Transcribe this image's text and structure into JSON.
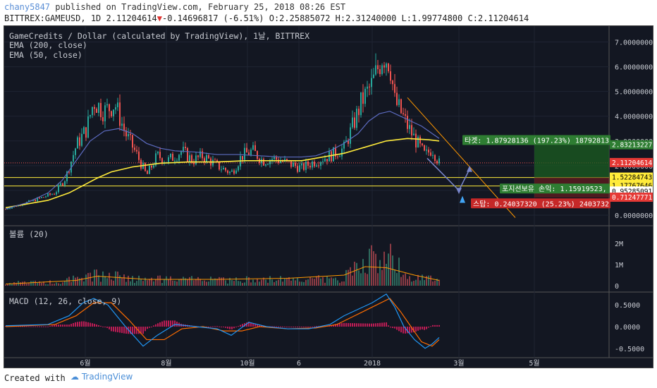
{
  "header": {
    "user": "chany5847",
    "published": " published on TradingView.com, February 25, 2018 08:26 EST",
    "symbol_line": "BITTREX:GAMEUSD, 1D 2.11204614",
    "change": "-0.14696817 (-6.51%)",
    "ohlc": "O:2.25885072 H:2.31240000 L:1.99774800 C:2.11204614",
    "down_arrow": "▼"
  },
  "legend": {
    "title": "GameCredits / Dollar (calculated by TradingView), 1날, BITTREX",
    "ema200": "EMA (200, close)",
    "ema50": "EMA (50, close)",
    "volume": "볼륨 (20)",
    "macd": "MACD (12, 26, close, 9)"
  },
  "footer": {
    "created": "Created with",
    "brand": "TradingView"
  },
  "trade": {
    "target_label": "타겟: 1.87928136 (197.23%) 18792813",
    "position_label": "포지션보유 손익: 1.15919523, 수",
    "stop_label": "스탑: 0.24037320 (25.23%) 2403732"
  },
  "price_labels": {
    "target": "2.83213227",
    "last": "2.11204614",
    "entry": "1.52284743",
    "l2": "1.17767646",
    "stop": "0.71247771",
    "l3": "0.95285091"
  },
  "colors": {
    "up": "#26a69a",
    "down": "#ef5350",
    "ema200": "#ffeb3b",
    "ema50": "#5c6bc0",
    "trend": "#ff9800",
    "macd": "#2196f3",
    "signal": "#ff6d00",
    "hist": "#e91e63"
  },
  "chart_data": [
    {
      "type": "candlestick",
      "title": "GameCredits / Dollar (calculated by TradingView), 1날, BITTREX",
      "ylim": [
        -0.2,
        7.3
      ],
      "yticks": [
        "7.00000000",
        "6.00000000",
        "5.00000000",
        "4.00000000",
        "3.00000000",
        "2.00000000",
        "1.00000000",
        "0.00000000"
      ],
      "xticks": [
        "6월",
        "8월",
        "10월",
        "6",
        "2018",
        "3월",
        "5월"
      ],
      "series": [
        {
          "name": "EMA (200, close)",
          "points": [
            [
              0,
              0.3
            ],
            [
              30,
              0.45
            ],
            [
              60,
              0.6
            ],
            [
              90,
              0.9
            ],
            [
              110,
              1.2
            ],
            [
              130,
              1.5
            ],
            [
              150,
              1.75
            ],
            [
              180,
              1.95
            ],
            [
              220,
              2.1
            ],
            [
              260,
              2.15
            ],
            [
              300,
              2.15
            ],
            [
              340,
              2.2
            ],
            [
              380,
              2.2
            ],
            [
              420,
              2.2
            ],
            [
              450,
              2.35
            ],
            [
              480,
              2.5
            ],
            [
              510,
              2.75
            ],
            [
              540,
              3.0
            ],
            [
              570,
              3.1
            ],
            [
              600,
              3.05
            ],
            [
              615,
              3.0
            ]
          ]
        },
        {
          "name": "EMA (50, close)",
          "points": [
            [
              0,
              0.25
            ],
            [
              30,
              0.5
            ],
            [
              60,
              0.9
            ],
            [
              80,
              1.4
            ],
            [
              100,
              2.2
            ],
            [
              120,
              3.0
            ],
            [
              140,
              3.4
            ],
            [
              160,
              3.5
            ],
            [
              180,
              3.3
            ],
            [
              200,
              2.9
            ],
            [
              220,
              2.7
            ],
            [
              240,
              2.6
            ],
            [
              270,
              2.55
            ],
            [
              300,
              2.45
            ],
            [
              330,
              2.45
            ],
            [
              360,
              2.4
            ],
            [
              390,
              2.35
            ],
            [
              420,
              2.35
            ],
            [
              440,
              2.4
            ],
            [
              460,
              2.6
            ],
            [
              480,
              2.9
            ],
            [
              500,
              3.3
            ],
            [
              515,
              3.8
            ],
            [
              530,
              4.1
            ],
            [
              545,
              4.2
            ],
            [
              560,
              4.0
            ],
            [
              575,
              3.8
            ],
            [
              590,
              3.6
            ],
            [
              605,
              3.3
            ],
            [
              615,
              3.1
            ]
          ]
        }
      ],
      "levels": {
        "target": 2.83213227,
        "last": 2.11204614,
        "entry": 1.52284743,
        "stop": 0.71247771
      }
    },
    {
      "type": "bar",
      "title": "볼륨 (20)",
      "yticks": [
        "2M",
        "1M",
        "0"
      ]
    },
    {
      "type": "line",
      "title": "MACD (12, 26, close, 9)",
      "yticks": [
        "0.5000",
        "0.0000",
        "-0.5000"
      ]
    }
  ]
}
